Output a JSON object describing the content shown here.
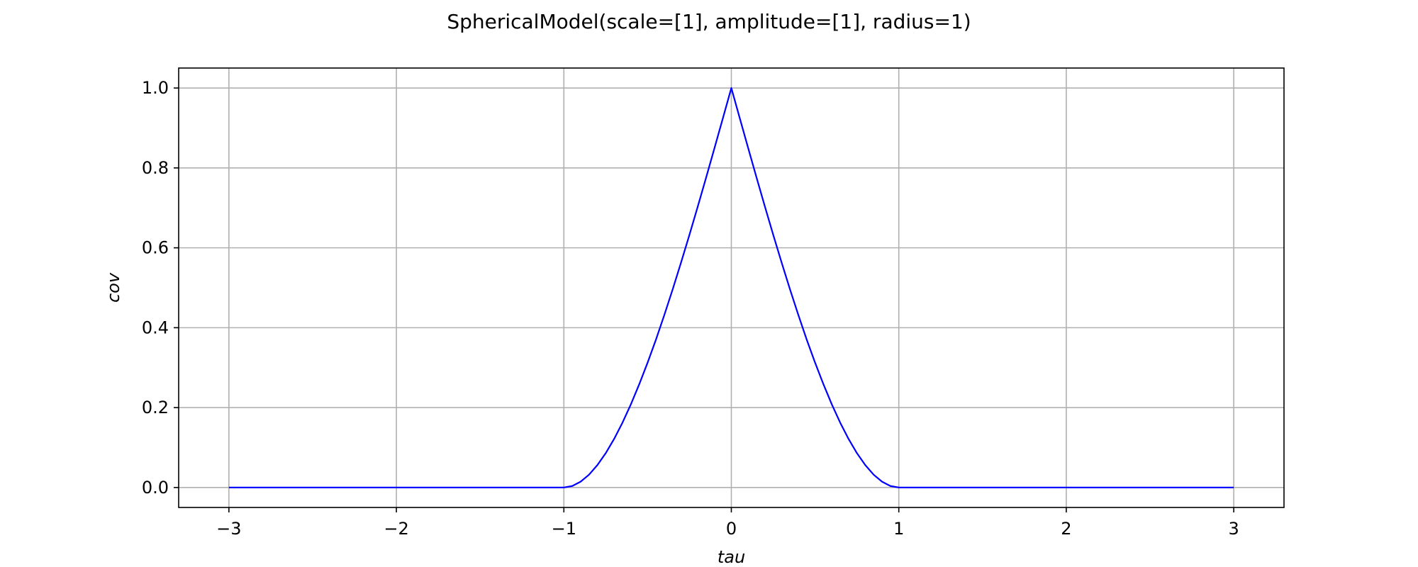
{
  "chart_data": {
    "type": "line",
    "title": "SphericalModel(scale=[1], amplitude=[1], radius=1)",
    "xlabel": "tau",
    "ylabel": "cov",
    "xlim": [
      -3.3,
      3.3
    ],
    "ylim": [
      -0.05,
      1.05
    ],
    "grid": true,
    "x_ticks": [
      -3,
      -2,
      -1,
      0,
      1,
      2,
      3
    ],
    "x_tick_labels": [
      "−3",
      "−2",
      "−1",
      "0",
      "1",
      "2",
      "3"
    ],
    "y_ticks": [
      0.0,
      0.2,
      0.4,
      0.6,
      0.8,
      1.0
    ],
    "y_tick_labels": [
      "0.0",
      "0.2",
      "0.4",
      "0.6",
      "0.8",
      "1.0"
    ],
    "series": [
      {
        "color": "#0000ff",
        "x": [
          -3.0,
          -2.5,
          -2.0,
          -1.5,
          -1.0,
          -0.95,
          -0.9,
          -0.85,
          -0.8,
          -0.75,
          -0.7,
          -0.65,
          -0.6,
          -0.55,
          -0.5,
          -0.45,
          -0.4,
          -0.35,
          -0.3,
          -0.25,
          -0.2,
          -0.15,
          -0.1,
          -0.05,
          0.0,
          0.05,
          0.1,
          0.15,
          0.2,
          0.25,
          0.3,
          0.35,
          0.4,
          0.45,
          0.5,
          0.55,
          0.6,
          0.65,
          0.7,
          0.75,
          0.8,
          0.85,
          0.9,
          0.95,
          1.0,
          1.5,
          2.0,
          2.5,
          3.0
        ],
        "y": [
          0.0,
          0.0,
          0.0,
          0.0,
          0.0,
          0.0037,
          0.0145,
          0.0319,
          0.056,
          0.0859,
          0.1215,
          0.1623,
          0.208,
          0.2583,
          0.3125,
          0.3702,
          0.432,
          0.4964,
          0.5635,
          0.6328,
          0.704,
          0.7766,
          0.8505,
          0.9251,
          1.0,
          0.9251,
          0.8505,
          0.7766,
          0.704,
          0.6328,
          0.5635,
          0.4964,
          0.432,
          0.3702,
          0.3125,
          0.2583,
          0.208,
          0.1623,
          0.1215,
          0.0859,
          0.056,
          0.0319,
          0.0145,
          0.0037,
          0.0,
          0.0,
          0.0,
          0.0,
          0.0
        ]
      }
    ]
  }
}
